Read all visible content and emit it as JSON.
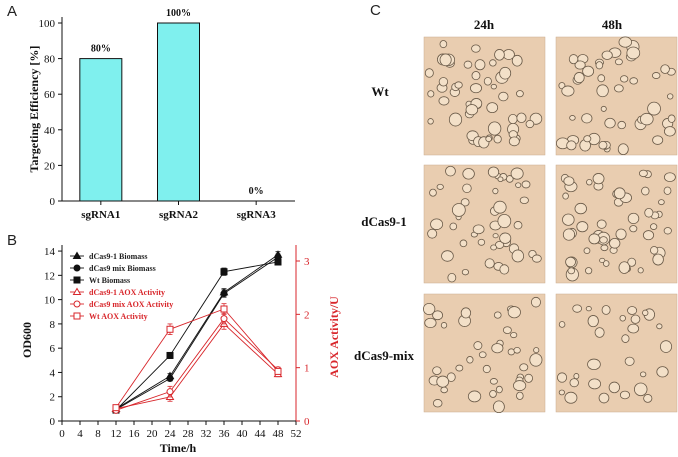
{
  "panels": {
    "a": "A",
    "b": "B",
    "c": "C"
  },
  "colors": {
    "bar_fill": "#7ff0ee",
    "black": "#111111",
    "red": "#d8262b",
    "cell_bg": "#e9cdb0"
  },
  "chart_data": [
    {
      "type": "bar",
      "panel": "A",
      "categories": [
        "sgRNA1",
        "sgRNA2",
        "sgRNA3"
      ],
      "values": [
        80,
        100,
        0
      ],
      "data_labels": [
        "80%",
        "100%",
        "0%"
      ],
      "ylabel": "Targeting Efficiency [%]",
      "xlabel": "",
      "ylim": [
        0,
        100
      ],
      "yticks": [
        0,
        20,
        40,
        60,
        80,
        100
      ],
      "ytick_labels": [
        "0",
        "20",
        "40",
        "60",
        "80",
        "100"
      ]
    },
    {
      "type": "line",
      "panel": "B",
      "xlabel": "Time/h",
      "ylabel_left": "OD600",
      "ylabel_right": "AOX Activity/U",
      "xlim": [
        0,
        52
      ],
      "xticks": [
        0,
        4,
        8,
        12,
        16,
        20,
        24,
        28,
        32,
        36,
        40,
        44,
        48,
        52
      ],
      "xtick_labels": [
        "0",
        "4",
        "8",
        "12",
        "16",
        "20",
        "24",
        "28",
        "32",
        "36",
        "40",
        "44",
        "48",
        "52"
      ],
      "ylim_left": [
        0,
        14.5
      ],
      "yticks_left": [
        0,
        2,
        4,
        6,
        8,
        10,
        12,
        14
      ],
      "ytick_labels_left": [
        "0",
        "2",
        "4",
        "6",
        "8",
        "10",
        "12",
        "14"
      ],
      "ylim_right": [
        0,
        3.3
      ],
      "yticks_right": [
        0,
        1,
        2,
        3
      ],
      "ytick_labels_right": [
        "0",
        "1",
        "2",
        "3"
      ],
      "legend_placement": "top-left",
      "x": [
        12,
        24,
        36,
        48
      ],
      "series": [
        {
          "name": "dCas9-1 Biomass",
          "axis": "left",
          "color": "#111111",
          "marker": "triangle",
          "values": [
            1.0,
            3.7,
            10.6,
            13.7
          ],
          "errors": [
            0.15,
            0.2,
            0.3,
            0.25
          ]
        },
        {
          "name": "dCas9 mix Biomass",
          "axis": "left",
          "color": "#111111",
          "marker": "circle",
          "values": [
            0.95,
            3.5,
            10.5,
            13.5
          ],
          "errors": [
            0.15,
            0.2,
            0.3,
            0.25
          ]
        },
        {
          "name": "Wt Biomass",
          "axis": "left",
          "color": "#111111",
          "marker": "square",
          "values": [
            0.9,
            5.4,
            12.3,
            13.1
          ],
          "errors": [
            0.15,
            0.25,
            0.3,
            0.25
          ]
        },
        {
          "name": "dCas9-1 AOX Activity",
          "axis": "right",
          "color": "#d8262b",
          "marker": "triangle",
          "values": [
            0.23,
            0.45,
            1.82,
            0.88
          ],
          "errors": [
            0.04,
            0.08,
            0.1,
            0.05
          ]
        },
        {
          "name": "dCas9 mix  AOX Activity",
          "axis": "right",
          "color": "#d8262b",
          "marker": "circle",
          "values": [
            0.2,
            0.55,
            1.92,
            0.96
          ],
          "errors": [
            0.04,
            0.1,
            0.1,
            0.05
          ]
        },
        {
          "name": "Wt AOX Activity",
          "axis": "right",
          "color": "#d8262b",
          "marker": "square",
          "values": [
            0.25,
            1.72,
            2.1,
            0.93
          ],
          "errors": [
            0.04,
            0.1,
            0.1,
            0.05
          ]
        }
      ]
    }
  ],
  "micrographs": {
    "columns": [
      "24h",
      "48h"
    ],
    "rows": [
      "Wt",
      "dCas9-1",
      "dCas9-mix"
    ]
  }
}
